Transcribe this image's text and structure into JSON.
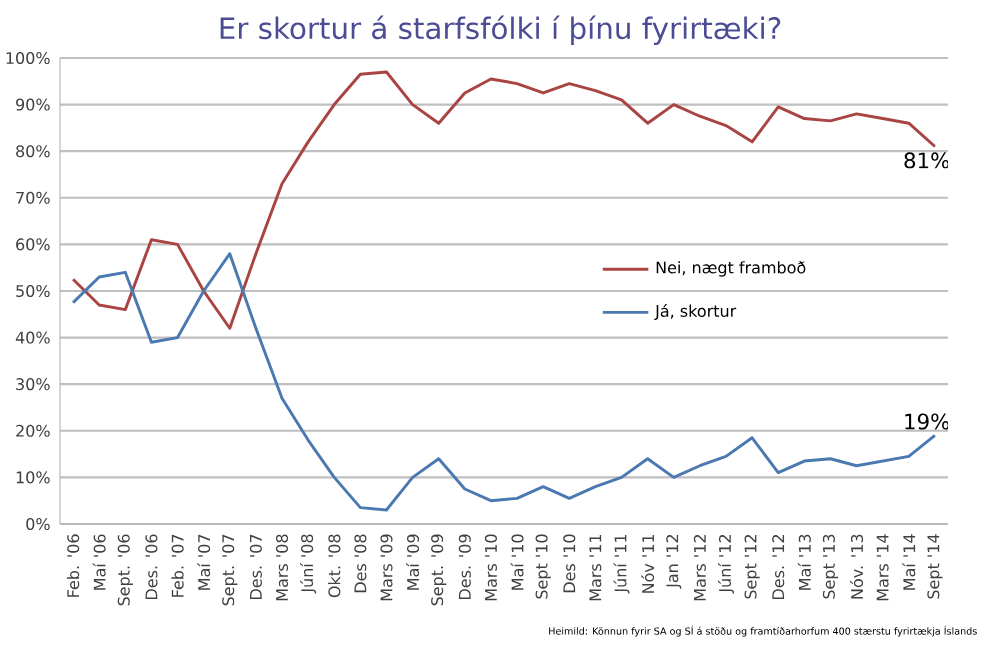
{
  "chart_data": {
    "type": "line",
    "title": "Er skortur á starfsfólki í þínu fyrirtæki?",
    "categories": [
      "Feb. '06",
      "Maí '06",
      "Sept. '06",
      "Des. '06",
      "Feb. '07",
      "Maí '07",
      "Sept. '07",
      "Des. '07",
      "Mars '08",
      "Júní '08",
      "Okt. '08",
      "Des '08",
      "Mars '09",
      "Maí '09",
      "Sept. '09",
      "Des. '09",
      "Mars '10",
      "Maí '10",
      "Sept '10",
      "Des '10",
      "Mars '11",
      "Júní '11",
      "Nóv '11",
      "Jan '12",
      "Mars '12",
      "Júní '12",
      "Sept '12",
      "Des. '12",
      "Maí '13",
      "Sept '13",
      "Nóv. '13",
      "Mars '14",
      "Maí '14",
      "Sept '14"
    ],
    "series": [
      {
        "name": "Nei, nægt framboð",
        "color": "#a94442",
        "values": [
          52.5,
          47,
          46,
          61,
          60,
          50,
          42,
          58,
          73,
          82,
          90,
          96.5,
          97,
          90,
          86,
          92.5,
          95.5,
          94.5,
          92.5,
          94.5,
          93,
          91,
          86,
          90,
          87.5,
          85.5,
          82,
          89.5,
          87,
          86.5,
          88,
          87,
          86,
          81
        ],
        "value_labels": [
          null,
          null,
          null,
          null,
          null,
          null,
          null,
          null,
          null,
          null,
          null,
          null,
          null,
          null,
          null,
          null,
          null,
          null,
          null,
          null,
          null,
          null,
          null,
          null,
          null,
          null,
          null,
          null,
          null,
          null,
          null,
          null,
          null,
          "81%"
        ]
      },
      {
        "name": "Já, skortur",
        "color": "#4a78b0",
        "values": [
          47.5,
          53,
          54,
          39,
          40,
          50,
          58,
          42,
          27,
          18,
          10,
          3.5,
          3,
          10,
          14,
          7.5,
          5,
          5.5,
          8,
          5.5,
          8,
          10,
          14,
          10,
          12.5,
          14.5,
          18.5,
          11,
          13.5,
          14,
          12.5,
          13.5,
          14.5,
          19
        ],
        "value_labels": [
          null,
          null,
          null,
          null,
          null,
          null,
          null,
          null,
          null,
          null,
          null,
          null,
          null,
          null,
          null,
          null,
          null,
          null,
          null,
          null,
          null,
          null,
          null,
          null,
          null,
          null,
          null,
          null,
          null,
          null,
          null,
          null,
          null,
          "19%"
        ]
      }
    ],
    "ylim": [
      0,
      100
    ],
    "yticks": [
      {
        "value": 0,
        "label": "0%"
      },
      {
        "value": 10,
        "label": "10%"
      },
      {
        "value": 20,
        "label": "20%"
      },
      {
        "value": 30,
        "label": "30%"
      },
      {
        "value": 40,
        "label": "40%"
      },
      {
        "value": 50,
        "label": "50%"
      },
      {
        "value": 60,
        "label": "60%"
      },
      {
        "value": 70,
        "label": "70%"
      },
      {
        "value": 80,
        "label": "80%"
      },
      {
        "value": 90,
        "label": "90%"
      },
      {
        "value": 100,
        "label": "100%"
      }
    ],
    "grid": "y",
    "legend": "right",
    "marker": "none",
    "line_style": "solid",
    "annotations": [
      "Heimild: Könnun fyrir SA og SÍ á stöðu og framtíðarhorfum 400 stærstu fyrirtækja Íslands"
    ]
  }
}
